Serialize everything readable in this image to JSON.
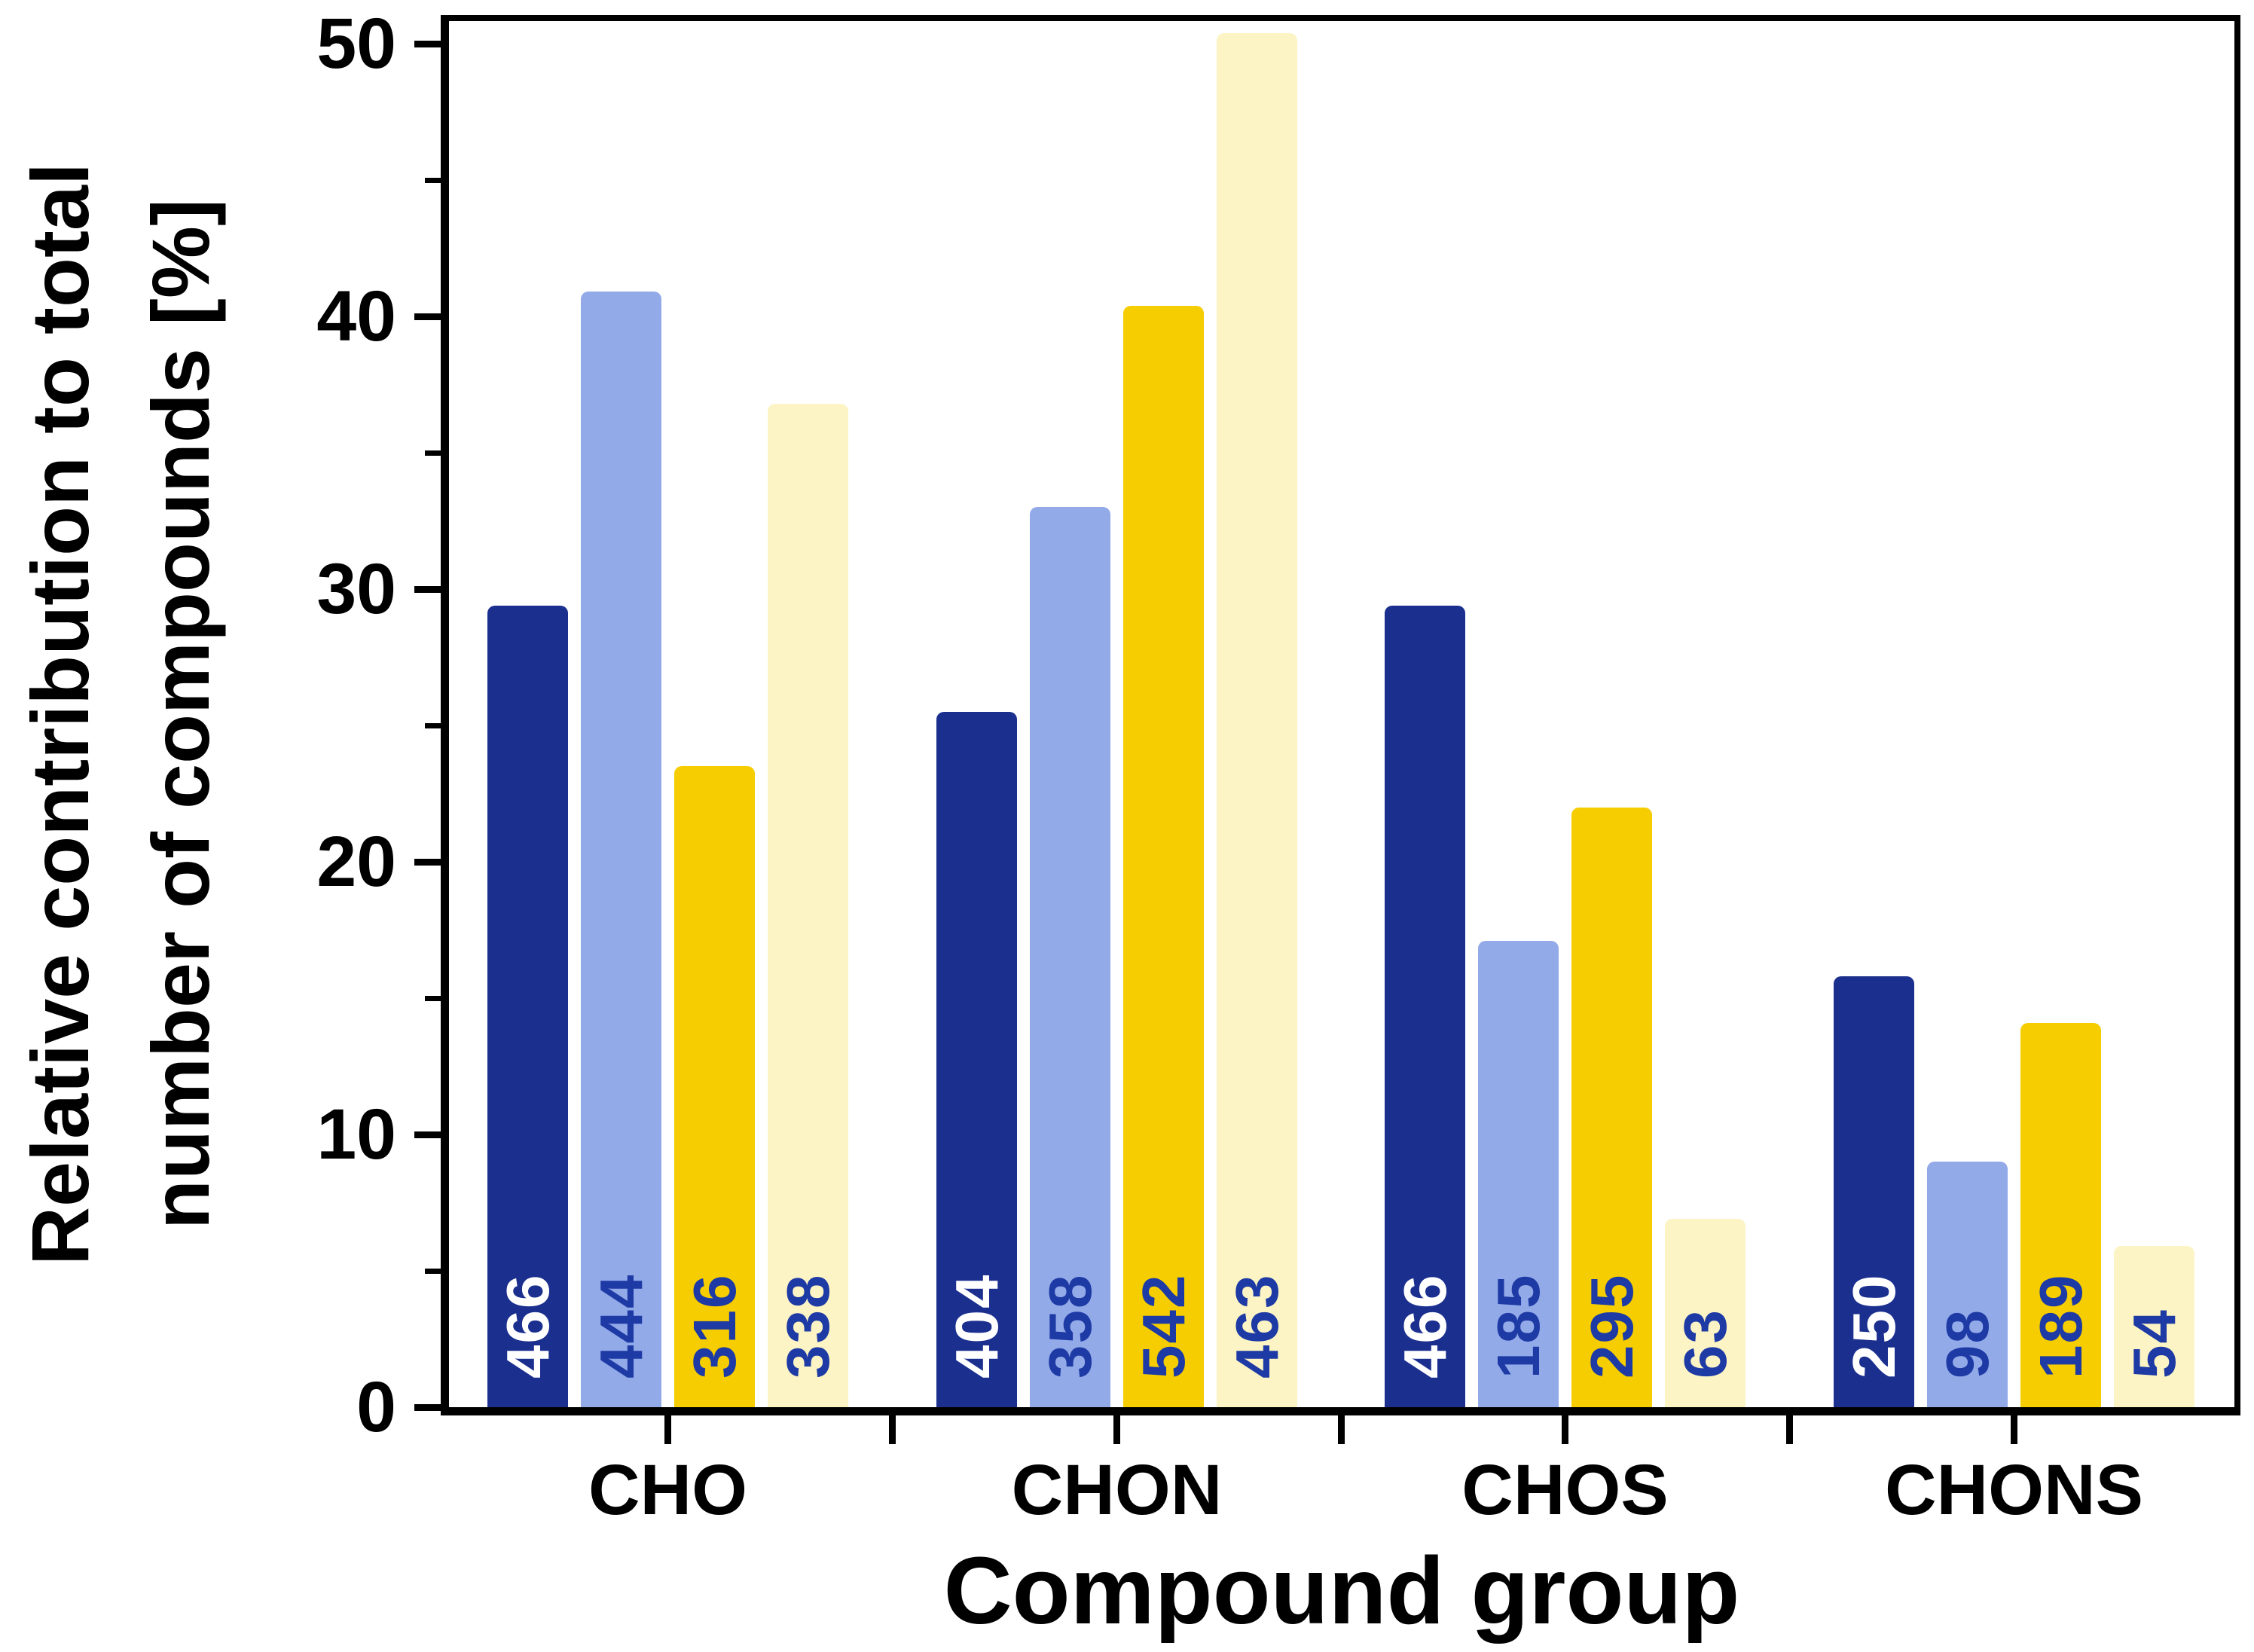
{
  "chart_data": {
    "type": "bar",
    "title": "",
    "xlabel": "Compound group",
    "ylabel_line1": "Relative contribution to total",
    "ylabel_line2": "number of compounds [%]",
    "ylim": [
      0,
      50.8
    ],
    "grid": false,
    "legend": "none",
    "yticks_major": [
      0,
      10,
      20,
      30,
      40,
      50
    ],
    "yticks_minor": [
      5,
      15,
      25,
      35,
      45
    ],
    "categories": [
      "CHO",
      "CHON",
      "CHOS",
      "CHONS"
    ],
    "series": [
      {
        "name": "series-1-dark-blue",
        "color": "#1b2f8f",
        "label_color": "#ffffff",
        "values": [
          29.4,
          25.5,
          29.4,
          15.8
        ],
        "counts": [
          "466",
          "404",
          "466",
          "250"
        ]
      },
      {
        "name": "series-2-light-blue",
        "color": "#93aae9",
        "label_color": "#1d3aa5",
        "values": [
          40.9,
          33.0,
          17.1,
          9.0
        ],
        "counts": [
          "444",
          "358",
          "185",
          "98"
        ]
      },
      {
        "name": "series-3-gold",
        "color": "#f5cd00",
        "label_color": "#1d3aa5",
        "values": [
          23.5,
          40.4,
          22.0,
          14.1
        ],
        "counts": [
          "316",
          "542",
          "295",
          "189"
        ]
      },
      {
        "name": "series-4-pale-yellow",
        "color": "#fcf4c4",
        "label_color": "#1d3aa5",
        "values": [
          36.8,
          50.4,
          6.9,
          5.9
        ],
        "counts": [
          "338",
          "463",
          "63",
          "54"
        ]
      }
    ],
    "axis_color": "#000000",
    "background_color": "#ffffff"
  }
}
